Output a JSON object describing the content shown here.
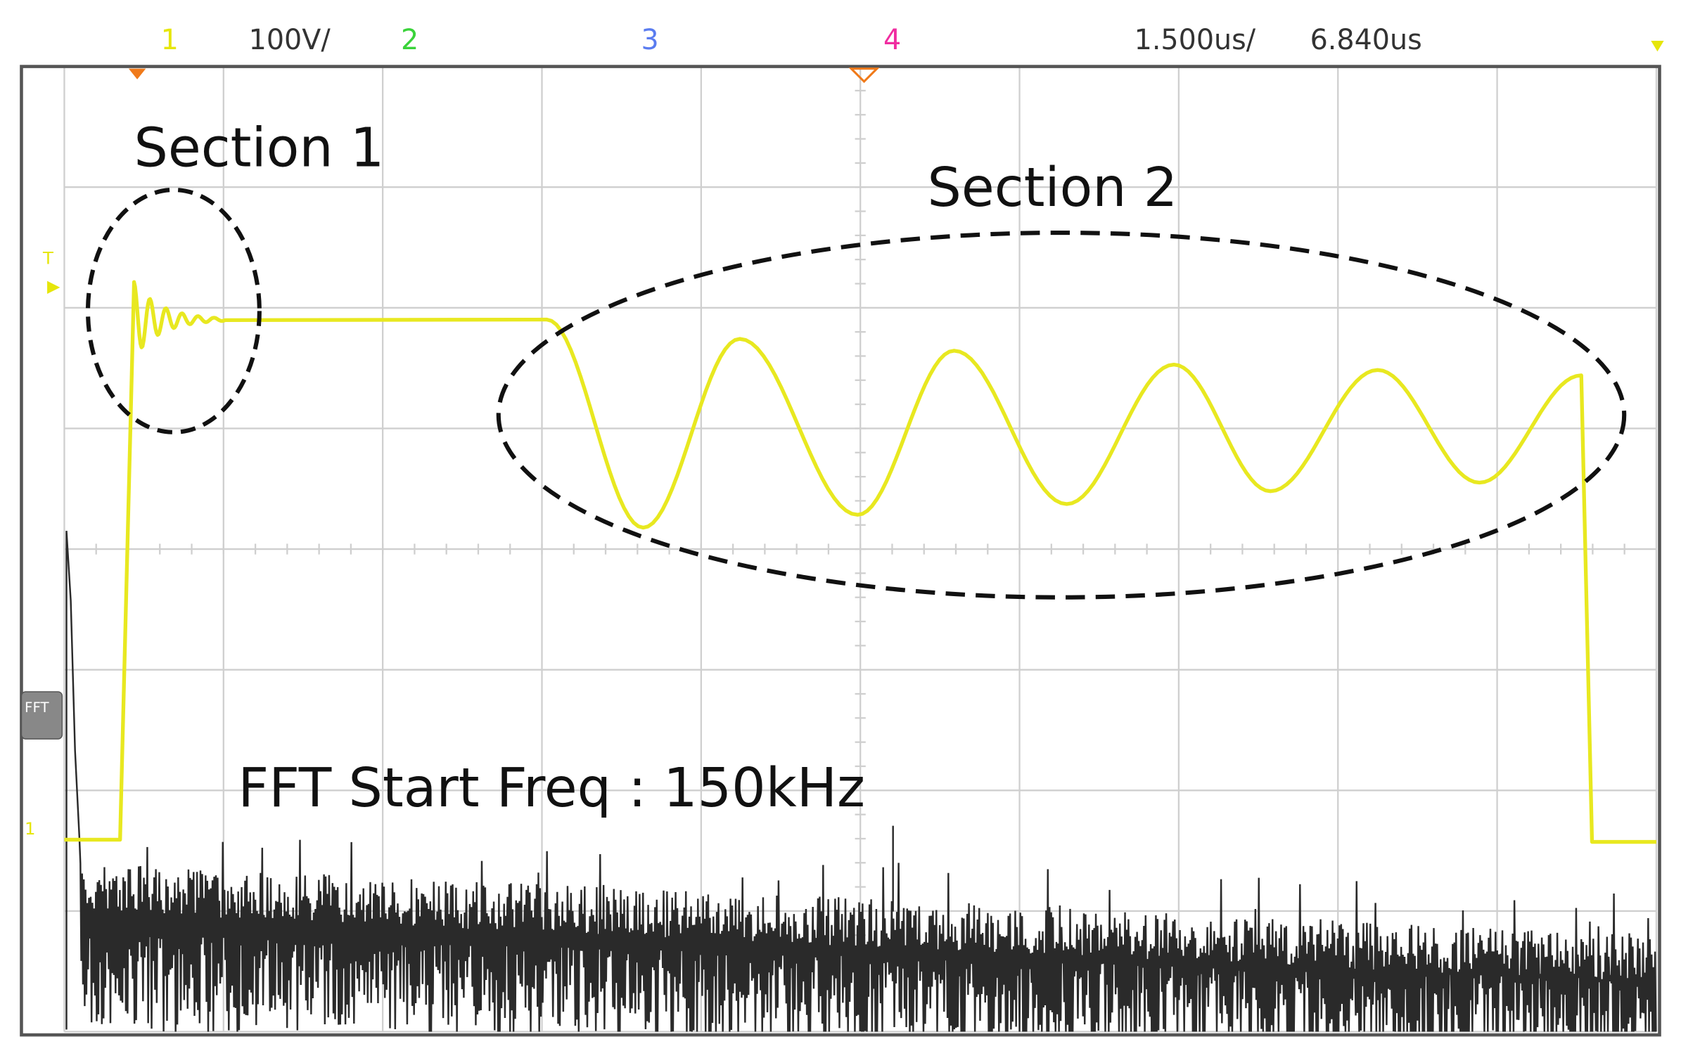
{
  "header": {
    "ch1": "1",
    "volts_per_div": "100V/",
    "ch2": "2",
    "ch3": "3",
    "ch4": "4",
    "time_per_div": "1.500us/",
    "time_offset": "6.840us"
  },
  "annotations": {
    "section1": "Section 1",
    "section2": "Section 2",
    "fft_note": "FFT Start Freq : 150kHz"
  },
  "markers": {
    "fft": "FFT",
    "trigger": "T",
    "ch1_ground": "1"
  }
}
